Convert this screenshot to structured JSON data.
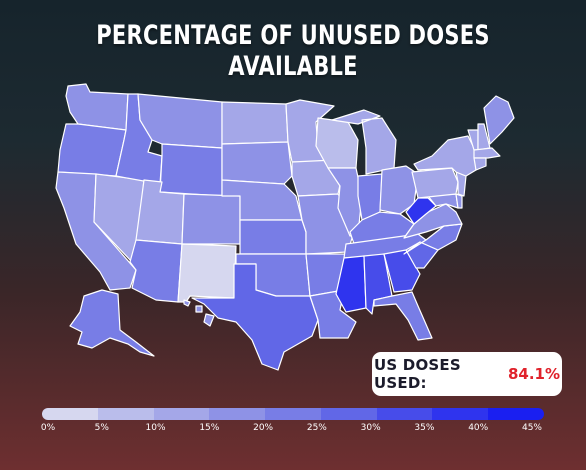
{
  "title": "PERCENTAGE OF UNUSED DOSES AVAILABLE",
  "badge": {
    "label": "US DOSES USED:",
    "value": "84.1%"
  },
  "legend": {
    "ticks": [
      "0%",
      "5%",
      "10%",
      "15%",
      "20%",
      "25%",
      "30%",
      "35%",
      "40%",
      "45%"
    ],
    "colors": [
      "#d6d7ef",
      "#babdeb",
      "#a4a7e8",
      "#8e92e6",
      "#787de6",
      "#6167e7",
      "#474cea",
      "#2f34ee",
      "#1a1ff1"
    ]
  },
  "state_fill_levels": {
    "WA": 3,
    "OR": 4,
    "CA": 3,
    "NV": 2,
    "ID": 4,
    "MT": 3,
    "WY": 4,
    "UT": 2,
    "AZ": 4,
    "CO": 3,
    "NM": 0,
    "ND": 2,
    "SD": 3,
    "NE": 3,
    "KS": 4,
    "OK": 4,
    "TX": 5,
    "MN": 2,
    "IA": 2,
    "MO": 3,
    "AR": 4,
    "LA": 4,
    "WI": 1,
    "IL": 3,
    "MI": 2,
    "IN": 4,
    "OH": 3,
    "KY": 4,
    "TN": 4,
    "MS": 7,
    "AL": 6,
    "GA": 6,
    "FL": 4,
    "SC": 5,
    "NC": 4,
    "VA": 3,
    "WV": 7,
    "MD": 3,
    "PA": 2,
    "NY": 2,
    "ME": 3,
    "NH": 2,
    "VT": 2,
    "MA": 2,
    "CT": 2,
    "NJ": 2,
    "DE": 3,
    "AK": 4,
    "HI": 3
  }
}
